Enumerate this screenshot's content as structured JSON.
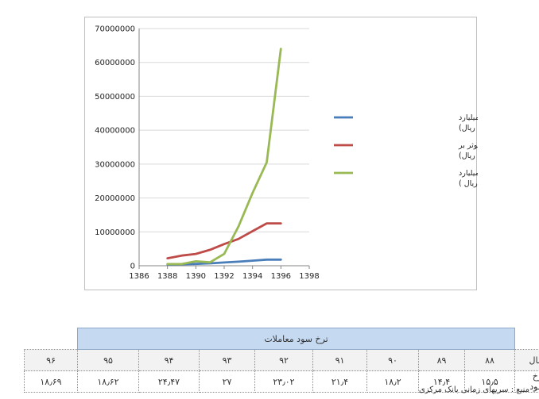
{
  "chart_data": {
    "type": "line",
    "title": "",
    "xlabel": "",
    "ylabel": "",
    "xlim": [
      1386,
      1398
    ],
    "ylim": [
      0,
      70000000
    ],
    "x_ticks": [
      "1386",
      "1388",
      "1390",
      "1392",
      "1394",
      "1396",
      "1398"
    ],
    "y_ticks": [
      "0",
      "10000000",
      "20000000",
      "30000000",
      "40000000",
      "50000000",
      "60000000",
      "70000000"
    ],
    "grid": "horizontal",
    "legend_position": "right",
    "series": [
      {
        "name": "پایه پولی بر حسب منابع (میلیارد ریال)",
        "legend_lines": [
          "پایه پولی بر حسب منابع (میلیارد",
          "ریال)"
        ],
        "color": "#4a7ebb",
        "x": [
          1388,
          1389,
          1390,
          1391,
          1392,
          1393,
          1394,
          1395,
          1396
        ],
        "y": [
          350000,
          450000,
          550000,
          700000,
          950000,
          1200000,
          1500000,
          1800000,
          1800000
        ]
      },
      {
        "name": "نقدینگی برحسب عوامل موثر بر عرضه آن (میلیارد ریال)",
        "legend_lines": [
          "نقدینگی برحسب عوامل موثر بر",
          "عرضه آن (میلیارد ریال)"
        ],
        "color": "#be4b48",
        "x": [
          1388,
          1389,
          1390,
          1391,
          1392,
          1393,
          1394,
          1395,
          1396
        ],
        "y": [
          2200000,
          3000000,
          3500000,
          4700000,
          6400000,
          7900000,
          10200000,
          12500000,
          12500000
        ]
      },
      {
        "name": "جمع معاملات بین بانکی(میلیارد ریال )",
        "legend_lines": [
          "جمع معاملات بین بانکی(میلیارد",
          "ریال )"
        ],
        "color": "#98b954",
        "x": [
          1388,
          1389,
          1390,
          1391,
          1392,
          1393,
          1394,
          1395,
          1396
        ],
        "y": [
          500000,
          500000,
          1300000,
          1000000,
          3500000,
          11500000,
          21500000,
          30500000,
          64000000
        ]
      }
    ]
  },
  "table": {
    "title": "ترخ سود معاملات",
    "row_year_label": "سال",
    "row_rate_label": "ترخ سود",
    "years": [
      "۸۸",
      "۸۹",
      "۹۰",
      "۹۱",
      "۹۲",
      "۹۳",
      "۹۴",
      "۹۵",
      "۹۶"
    ],
    "rates": [
      "۱۵٫۵",
      "۱۴٫۴",
      "۱۸٫۲",
      "۲۱٫۴",
      "۲۳٫۰۲",
      "۲۷",
      "۲۴٫۴۷",
      "۱۸٫۶۲",
      "۱۸٫۶۹"
    ]
  },
  "source_note": "منبع : سریهای زمانی بانک مرکزی"
}
